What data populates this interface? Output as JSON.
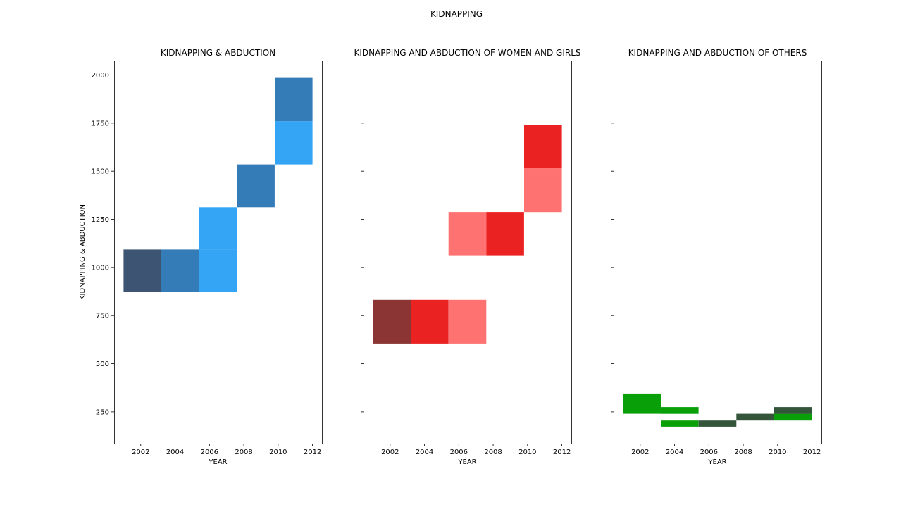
{
  "figure": {
    "suptitle": "KIDNAPPING"
  },
  "chart_data": [
    {
      "type": "heatmap",
      "title": "KIDNAPPING & ABDUCTION",
      "xlabel": "YEAR",
      "ylabel": "KIDNAPPING & ABDUCTION",
      "xlim": [
        2000.45,
        2012.55
      ],
      "ylim": [
        85,
        2075
      ],
      "xticks": [
        2002,
        2004,
        2006,
        2008,
        2010,
        2012
      ],
      "yticks": [
        250,
        500,
        750,
        1000,
        1250,
        1500,
        1750,
        2000
      ],
      "cells": [
        {
          "x0": 2001.0,
          "x1": 2003.2,
          "y0": 873,
          "y1": 1093,
          "color": "#3d5573"
        },
        {
          "x0": 2003.2,
          "x1": 2005.4,
          "y0": 873,
          "y1": 1093,
          "color": "#347cb8"
        },
        {
          "x0": 2005.4,
          "x1": 2007.6,
          "y0": 873,
          "y1": 1093,
          "color": "#34a5f5"
        },
        {
          "x0": 2005.4,
          "x1": 2007.6,
          "y0": 1093,
          "y1": 1313,
          "color": "#34a5f5"
        },
        {
          "x0": 2007.6,
          "x1": 2009.8,
          "y0": 1313,
          "y1": 1535,
          "color": "#347cb8"
        },
        {
          "x0": 2009.8,
          "x1": 2012.0,
          "y0": 1535,
          "y1": 1760,
          "color": "#34a5f5"
        },
        {
          "x0": 2009.8,
          "x1": 2012.0,
          "y0": 1760,
          "y1": 1985,
          "color": "#347cb8"
        }
      ]
    },
    {
      "type": "heatmap",
      "title": "KIDNAPPING AND ABDUCTION OF WOMEN AND GIRLS",
      "xlabel": "YEAR",
      "ylabel": "",
      "xlim": [
        2000.45,
        2012.55
      ],
      "ylim": [
        85,
        2075
      ],
      "xticks": [
        2002,
        2004,
        2006,
        2008,
        2010,
        2012
      ],
      "yticks": [
        250,
        500,
        750,
        1000,
        1250,
        1500,
        1750,
        2000
      ],
      "cells": [
        {
          "x0": 2001.0,
          "x1": 2003.2,
          "y0": 605,
          "y1": 832,
          "color": "#8b3535"
        },
        {
          "x0": 2003.2,
          "x1": 2005.4,
          "y0": 605,
          "y1": 832,
          "color": "#ea2222"
        },
        {
          "x0": 2005.4,
          "x1": 2007.6,
          "y0": 605,
          "y1": 832,
          "color": "#ff7272"
        },
        {
          "x0": 2005.4,
          "x1": 2007.6,
          "y0": 1063,
          "y1": 1288,
          "color": "#ff7272"
        },
        {
          "x0": 2007.6,
          "x1": 2009.8,
          "y0": 1063,
          "y1": 1288,
          "color": "#ea2222"
        },
        {
          "x0": 2009.8,
          "x1": 2012.0,
          "y0": 1288,
          "y1": 1515,
          "color": "#ff7272"
        },
        {
          "x0": 2009.8,
          "x1": 2012.0,
          "y0": 1515,
          "y1": 1742,
          "color": "#ea2222"
        }
      ]
    },
    {
      "type": "heatmap",
      "title": "KIDNAPPING AND ABDUCTION OF OTHERS",
      "xlabel": "YEAR",
      "ylabel": "",
      "xlim": [
        2000.45,
        2012.55
      ],
      "ylim": [
        85,
        2075
      ],
      "xticks": [
        2002,
        2004,
        2006,
        2008,
        2010,
        2012
      ],
      "yticks": [
        250,
        500,
        750,
        1000,
        1250,
        1500,
        1750,
        2000
      ],
      "cells": [
        {
          "x0": 2001.0,
          "x1": 2003.2,
          "y0": 240,
          "y1": 345,
          "color": "#089f08"
        },
        {
          "x0": 2003.2,
          "x1": 2005.4,
          "y0": 240,
          "y1": 275,
          "color": "#089f08"
        },
        {
          "x0": 2003.2,
          "x1": 2005.4,
          "y0": 173,
          "y1": 205,
          "color": "#089f08"
        },
        {
          "x0": 2005.4,
          "x1": 2007.6,
          "y0": 173,
          "y1": 205,
          "color": "#34553a"
        },
        {
          "x0": 2007.6,
          "x1": 2009.8,
          "y0": 205,
          "y1": 240,
          "color": "#34553a"
        },
        {
          "x0": 2009.8,
          "x1": 2012.0,
          "y0": 205,
          "y1": 240,
          "color": "#089f08"
        },
        {
          "x0": 2009.8,
          "x1": 2012.0,
          "y0": 240,
          "y1": 275,
          "color": "#34553a"
        }
      ]
    }
  ]
}
